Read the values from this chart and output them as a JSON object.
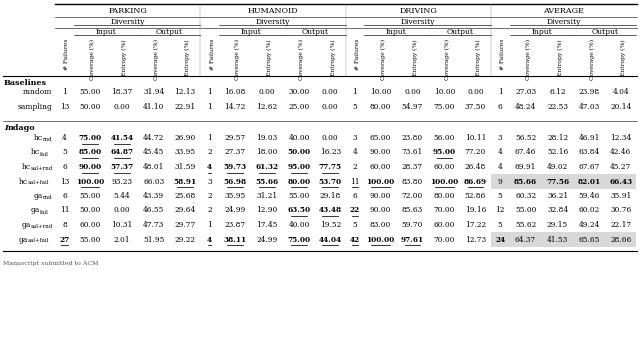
{
  "col_sections": [
    "Parking",
    "Humanoid",
    "Driving",
    "Average"
  ],
  "data": {
    "random": [
      [
        1,
        55.0,
        18.37,
        31.94,
        12.13
      ],
      [
        1,
        16.08,
        0.0,
        30.0,
        0.0
      ],
      [
        1,
        10.0,
        0.0,
        10.0,
        0.0
      ],
      [
        1,
        27.03,
        6.12,
        23.98,
        4.04
      ]
    ],
    "sampling": [
      [
        13,
        50.0,
        0.0,
        41.1,
        22.91
      ],
      [
        1,
        14.72,
        12.62,
        25.0,
        0.0
      ],
      [
        5,
        80.0,
        54.97,
        75.0,
        37.5
      ],
      [
        6,
        48.24,
        22.53,
        47.03,
        20.14
      ]
    ],
    "hc_rnd": [
      [
        4,
        75.0,
        41.54,
        44.72,
        26.9
      ],
      [
        1,
        29.57,
        19.03,
        40.0,
        0.0
      ],
      [
        3,
        65.0,
        23.8,
        56.0,
        10.11
      ],
      [
        3,
        56.52,
        28.12,
        46.91,
        12.34
      ]
    ],
    "hc_fail": [
      [
        5,
        85.0,
        64.87,
        45.45,
        33.95
      ],
      [
        2,
        27.37,
        18.0,
        50.0,
        16.23
      ],
      [
        4,
        90.0,
        73.61,
        95.0,
        77.2
      ],
      [
        4,
        67.46,
        52.16,
        63.84,
        42.46
      ]
    ],
    "hc_sal+rnd": [
      [
        6,
        90.0,
        57.37,
        48.01,
        31.59
      ],
      [
        4,
        59.73,
        61.32,
        95.0,
        77.75
      ],
      [
        2,
        60.0,
        28.37,
        60.0,
        26.48
      ],
      [
        4,
        69.91,
        49.02,
        67.67,
        45.27
      ]
    ],
    "hc_sal+fail": [
      [
        13,
        100.0,
        93.23,
        66.03,
        58.91
      ],
      [
        3,
        56.98,
        55.66,
        80.0,
        53.7
      ],
      [
        11,
        100.0,
        83.8,
        100.0,
        86.69
      ],
      [
        9,
        85.66,
        77.56,
        82.01,
        66.43
      ]
    ],
    "ga_rnd": [
      [
        6,
        55.0,
        5.44,
        43.39,
        25.68
      ],
      [
        2,
        35.95,
        31.21,
        55.0,
        29.18
      ],
      [
        6,
        90.0,
        72.0,
        80.0,
        52.86
      ],
      [
        5,
        60.32,
        36.21,
        59.46,
        35.91
      ]
    ],
    "ga_fail": [
      [
        11,
        50.0,
        0.0,
        46.55,
        29.64
      ],
      [
        2,
        24.99,
        12.9,
        63.5,
        43.48
      ],
      [
        22,
        90.0,
        85.63,
        70.0,
        19.16
      ],
      [
        12,
        55.0,
        32.84,
        60.02,
        30.76
      ]
    ],
    "ga_sal+rnd": [
      [
        8,
        60.0,
        10.31,
        47.73,
        29.77
      ],
      [
        1,
        23.87,
        17.45,
        40.0,
        19.52
      ],
      [
        5,
        83.0,
        59.7,
        60.0,
        17.22
      ],
      [
        5,
        55.62,
        29.15,
        49.24,
        22.17
      ]
    ],
    "ga_sal+fail": [
      [
        27,
        55.0,
        2.01,
        51.95,
        29.22
      ],
      [
        4,
        38.11,
        24.99,
        75.0,
        44.04
      ],
      [
        42,
        100.0,
        97.61,
        70.0,
        12.73
      ],
      [
        24,
        64.37,
        41.53,
        65.65,
        28.66
      ]
    ]
  },
  "bold_cells": {
    "hc_rnd": [
      [
        0,
        1,
        1,
        0,
        0
      ],
      [
        0,
        0,
        0,
        0,
        0
      ],
      [
        0,
        0,
        0,
        0,
        0
      ],
      [
        0,
        0,
        0,
        0,
        0
      ]
    ],
    "hc_fail": [
      [
        0,
        1,
        1,
        0,
        0
      ],
      [
        0,
        0,
        0,
        1,
        0
      ],
      [
        0,
        0,
        0,
        1,
        0
      ],
      [
        0,
        0,
        0,
        0,
        0
      ]
    ],
    "hc_sal+rnd": [
      [
        0,
        1,
        1,
        0,
        0
      ],
      [
        1,
        1,
        1,
        1,
        1
      ],
      [
        0,
        0,
        0,
        0,
        0
      ],
      [
        0,
        0,
        0,
        0,
        0
      ]
    ],
    "hc_sal+fail": [
      [
        0,
        1,
        0,
        0,
        1
      ],
      [
        0,
        1,
        1,
        1,
        1
      ],
      [
        0,
        1,
        0,
        1,
        1
      ],
      [
        0,
        1,
        1,
        1,
        1
      ]
    ],
    "ga_rnd": [
      [
        0,
        0,
        0,
        0,
        0
      ],
      [
        0,
        0,
        0,
        0,
        0
      ],
      [
        0,
        0,
        0,
        0,
        0
      ],
      [
        0,
        0,
        0,
        0,
        0
      ]
    ],
    "ga_fail": [
      [
        0,
        0,
        0,
        0,
        0
      ],
      [
        0,
        0,
        0,
        1,
        1
      ],
      [
        1,
        0,
        0,
        0,
        0
      ],
      [
        0,
        0,
        0,
        0,
        0
      ]
    ],
    "ga_sal+rnd": [
      [
        0,
        0,
        0,
        0,
        0
      ],
      [
        0,
        0,
        0,
        0,
        0
      ],
      [
        0,
        0,
        0,
        0,
        0
      ],
      [
        0,
        0,
        0,
        0,
        0
      ]
    ],
    "ga_sal+fail": [
      [
        1,
        0,
        0,
        0,
        0
      ],
      [
        1,
        1,
        0,
        1,
        1
      ],
      [
        1,
        1,
        1,
        0,
        0
      ],
      [
        1,
        0,
        0,
        0,
        0
      ]
    ]
  },
  "underline_cells": {
    "hc_rnd": [
      [
        0,
        1,
        1,
        0,
        0
      ],
      [
        0,
        0,
        0,
        0,
        0
      ],
      [
        0,
        0,
        0,
        0,
        0
      ],
      [
        0,
        0,
        0,
        0,
        0
      ]
    ],
    "hc_fail": [
      [
        0,
        1,
        1,
        0,
        0
      ],
      [
        0,
        0,
        0,
        0,
        0
      ],
      [
        0,
        0,
        0,
        1,
        0
      ],
      [
        0,
        0,
        0,
        0,
        0
      ]
    ],
    "hc_sal+rnd": [
      [
        0,
        1,
        1,
        0,
        0
      ],
      [
        1,
        1,
        1,
        1,
        1
      ],
      [
        0,
        0,
        0,
        0,
        0
      ],
      [
        0,
        0,
        0,
        0,
        0
      ]
    ],
    "hc_sal+fail": [
      [
        0,
        1,
        0,
        0,
        1
      ],
      [
        0,
        1,
        1,
        1,
        1
      ],
      [
        1,
        1,
        0,
        1,
        1
      ],
      [
        0,
        0,
        0,
        0,
        0
      ]
    ],
    "ga_rnd": [
      [
        0,
        0,
        0,
        0,
        0
      ],
      [
        0,
        0,
        0,
        0,
        0
      ],
      [
        0,
        0,
        0,
        0,
        0
      ],
      [
        0,
        0,
        0,
        0,
        0
      ]
    ],
    "ga_fail": [
      [
        0,
        0,
        0,
        0,
        0
      ],
      [
        0,
        0,
        0,
        1,
        1
      ],
      [
        1,
        0,
        0,
        0,
        0
      ],
      [
        0,
        0,
        0,
        0,
        0
      ]
    ],
    "ga_sal+rnd": [
      [
        0,
        0,
        0,
        0,
        0
      ],
      [
        0,
        0,
        0,
        0,
        0
      ],
      [
        0,
        0,
        0,
        0,
        0
      ],
      [
        0,
        0,
        0,
        0,
        0
      ]
    ],
    "ga_sal+fail": [
      [
        1,
        0,
        0,
        0,
        0
      ],
      [
        1,
        1,
        0,
        1,
        1
      ],
      [
        1,
        1,
        1,
        0,
        0
      ],
      [
        0,
        0,
        0,
        0,
        0
      ]
    ]
  },
  "highlight_avg_rows": [
    "hc_sal+fail",
    "ga_sal+fail"
  ],
  "highlight_failures_cell": [
    "ga_sal+fail"
  ],
  "bg_color": "#d8d8d8",
  "footer": "Manuscript submitted to ACM",
  "row_labels_main": {
    "random": "random",
    "sampling": "sampling",
    "hc_rnd": "hc",
    "hc_fail": "hc",
    "hc_sal+rnd": "hc",
    "hc_sal+fail": "hc",
    "ga_rnd": "ga",
    "ga_fail": "ga",
    "ga_sal+rnd": "ga",
    "ga_sal+fail": "ga"
  },
  "row_labels_sub": {
    "hc_rnd": "rnd",
    "hc_fail": "fail",
    "hc_sal+rnd": "sal+rnd",
    "hc_sal+fail": "sal+fail",
    "ga_rnd": "rnd",
    "ga_fail": "fail",
    "ga_sal+rnd": "sal+rnd",
    "ga_sal+fail": "sal+fail"
  }
}
